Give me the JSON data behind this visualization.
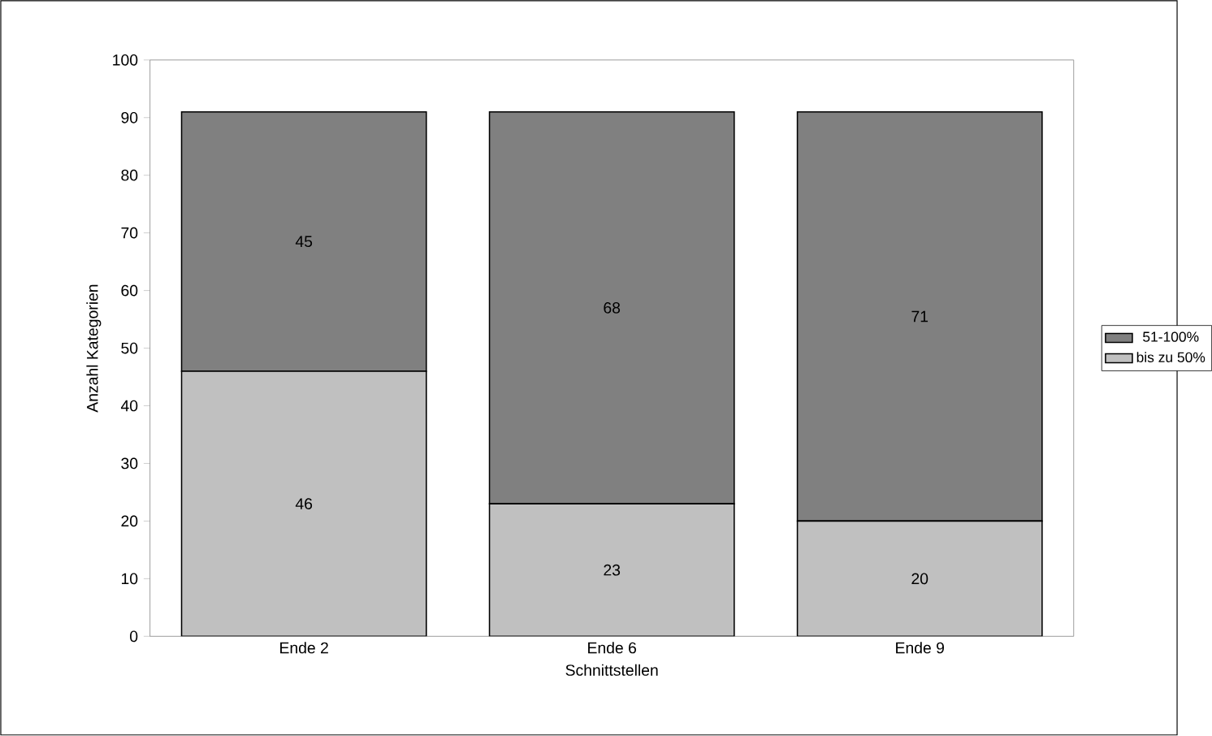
{
  "chart_data": {
    "type": "bar",
    "stacked": true,
    "xlabel": "Schnittstellen",
    "ylabel": "Anzahl Kategorien",
    "categories": [
      "Ende 2",
      "Ende 6",
      "Ende 9"
    ],
    "series": [
      {
        "name": "bis zu 50%",
        "color": "#c0c0c0",
        "values": [
          46,
          23,
          20
        ]
      },
      {
        "name": "51-100%",
        "color": "#808080",
        "values": [
          45,
          68,
          71
        ]
      }
    ],
    "ylim": [
      0,
      100
    ],
    "yticks": [
      0,
      10,
      20,
      30,
      40,
      50,
      60,
      70,
      80,
      90,
      100
    ],
    "data_labels": true,
    "legend": "right",
    "grid": false
  }
}
